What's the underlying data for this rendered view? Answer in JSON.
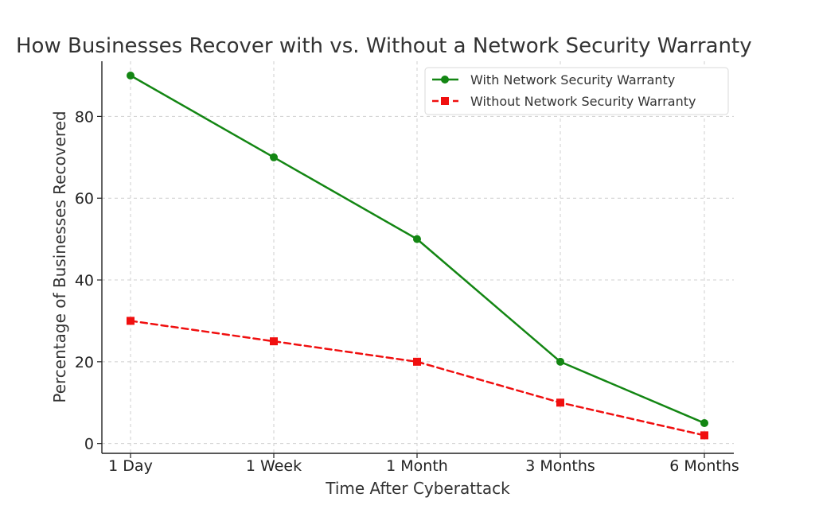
{
  "chart_data": {
    "type": "line",
    "title": "How Businesses Recover with vs. Without a Network Security Warranty",
    "xlabel": "Time After Cyberattack",
    "ylabel": "Percentage of Businesses Recovered",
    "categories": [
      "1 Day",
      "1 Week",
      "1 Month",
      "3 Months",
      "6 Months"
    ],
    "ylim": [
      -2.4,
      93.5
    ],
    "yticks": [
      0,
      20,
      40,
      60,
      80
    ],
    "grid": true,
    "legend_position": "top-right",
    "series": [
      {
        "name": "With Network Security Warranty",
        "values": [
          90,
          70,
          50,
          20,
          5
        ],
        "color": "#138613",
        "line_style": "solid",
        "marker": "circle"
      },
      {
        "name": "Without Network Security Warranty",
        "values": [
          30,
          25,
          20,
          10,
          2
        ],
        "color": "#f00f0f",
        "line_style": "dashed",
        "marker": "square"
      }
    ]
  }
}
